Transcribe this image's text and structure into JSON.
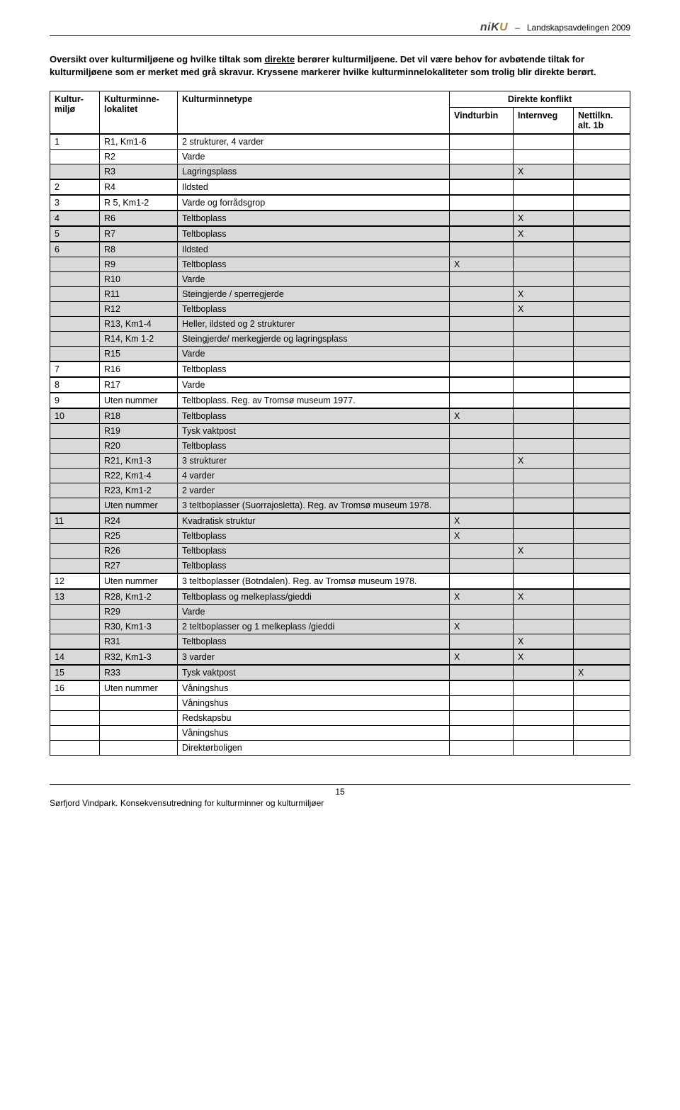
{
  "header": {
    "dept": "Landskapsavdelingen 2009",
    "logo": {
      "n": "n",
      "i": "i",
      "k": "K",
      "u": "U"
    }
  },
  "intro": {
    "p1a": "Oversikt over kulturmiljøene og hvilke tiltak som ",
    "p1u": "direkte",
    "p1b": " berører kulturmiljøene. Det vil være behov for avbøtende tiltak for kulturmiljøene som er merket med grå skravur. Kryssene markerer hvilke kulturminnelokaliteter som trolig blir direkte berørt."
  },
  "table": {
    "headers": {
      "c1": "Kultur-miljø",
      "c2": "Kulturminne-lokalitet",
      "c3": "Kulturminnetype",
      "c_conf": "Direkte konflikt",
      "c4": "Vindturbin",
      "c5": "Internveg",
      "c6": "Nettilkn. alt. 1b"
    },
    "rows": [
      {
        "km": "1",
        "lok": "R1, Km1-6",
        "type": "2 strukturer, 4 varder",
        "v": "",
        "i": "",
        "n": "",
        "shade": false,
        "group": true
      },
      {
        "km": "",
        "lok": "R2",
        "type": "Varde",
        "v": "",
        "i": "",
        "n": "",
        "shade": false
      },
      {
        "km": "",
        "lok": "R3",
        "type": "Lagringsplass",
        "v": "",
        "i": "X",
        "n": "",
        "shade": true
      },
      {
        "km": "2",
        "lok": "R4",
        "type": "Ildsted",
        "v": "",
        "i": "",
        "n": "",
        "shade": false,
        "group": true
      },
      {
        "km": "3",
        "lok": "R 5, Km1-2",
        "type": "Varde og forrådsgrop",
        "v": "",
        "i": "",
        "n": "",
        "shade": false,
        "group": true
      },
      {
        "km": "4",
        "lok": "R6",
        "type": "Teltboplass",
        "v": "",
        "i": "X",
        "n": "",
        "shade": true,
        "group": true
      },
      {
        "km": "5",
        "lok": "R7",
        "type": "Teltboplass",
        "v": "",
        "i": "X",
        "n": "",
        "shade": true,
        "group": true
      },
      {
        "km": "6",
        "lok": "R8",
        "type": "Ildsted",
        "v": "",
        "i": "",
        "n": "",
        "shade": true,
        "group": true
      },
      {
        "km": "",
        "lok": "R9",
        "type": "Teltboplass",
        "v": "X",
        "i": "",
        "n": "",
        "shade": true
      },
      {
        "km": "",
        "lok": "R10",
        "type": "Varde",
        "v": "",
        "i": "",
        "n": "",
        "shade": true
      },
      {
        "km": "",
        "lok": "R11",
        "type": "Steingjerde / sperregjerde",
        "v": "",
        "i": "X",
        "n": "",
        "shade": true
      },
      {
        "km": "",
        "lok": "R12",
        "type": "Teltboplass",
        "v": "",
        "i": "X",
        "n": "",
        "shade": true
      },
      {
        "km": "",
        "lok": "R13, Km1-4",
        "type": "Heller, ildsted og 2 strukturer",
        "v": "",
        "i": "",
        "n": "",
        "shade": true
      },
      {
        "km": "",
        "lok": "R14, Km 1-2",
        "type": "Steingjerde/ merkegjerde og lagringsplass",
        "v": "",
        "i": "",
        "n": "",
        "shade": true
      },
      {
        "km": "",
        "lok": "R15",
        "type": "Varde",
        "v": "",
        "i": "",
        "n": "",
        "shade": true
      },
      {
        "km": "7",
        "lok": "R16",
        "type": "Teltboplass",
        "v": "",
        "i": "",
        "n": "",
        "shade": false,
        "group": true
      },
      {
        "km": "8",
        "lok": "R17",
        "type": "Varde",
        "v": "",
        "i": "",
        "n": "",
        "shade": false,
        "group": true
      },
      {
        "km": "9",
        "lok": "Uten nummer",
        "type": "Teltboplass. Reg. av Tromsø museum 1977.",
        "v": "",
        "i": "",
        "n": "",
        "shade": false,
        "group": true
      },
      {
        "km": "10",
        "lok": "R18",
        "type": "Teltboplass",
        "v": "X",
        "i": "",
        "n": "",
        "shade": true,
        "group": true
      },
      {
        "km": "",
        "lok": "R19",
        "type": "Tysk vaktpost",
        "v": "",
        "i": "",
        "n": "",
        "shade": true
      },
      {
        "km": "",
        "lok": "R20",
        "type": "Teltboplass",
        "v": "",
        "i": "",
        "n": "",
        "shade": true
      },
      {
        "km": "",
        "lok": "R21, Km1-3",
        "type": "3 strukturer",
        "v": "",
        "i": "X",
        "n": "",
        "shade": true
      },
      {
        "km": "",
        "lok": "R22, Km1-4",
        "type": "4 varder",
        "v": "",
        "i": "",
        "n": "",
        "shade": true
      },
      {
        "km": "",
        "lok": "R23, Km1-2",
        "type": "2 varder",
        "v": "",
        "i": "",
        "n": "",
        "shade": true
      },
      {
        "km": "",
        "lok": "Uten nummer",
        "type": "3 teltboplasser (Suorrajosletta). Reg. av Tromsø museum 1978.",
        "v": "",
        "i": "",
        "n": "",
        "shade": true
      },
      {
        "km": "11",
        "lok": "R24",
        "type": "Kvadratisk struktur",
        "v": "X",
        "i": "",
        "n": "",
        "shade": true,
        "group": true
      },
      {
        "km": "",
        "lok": "R25",
        "type": "Teltboplass",
        "v": "X",
        "i": "",
        "n": "",
        "shade": true
      },
      {
        "km": "",
        "lok": "R26",
        "type": "Teltboplass",
        "v": "",
        "i": "X",
        "n": "",
        "shade": true
      },
      {
        "km": "",
        "lok": "R27",
        "type": "Teltboplass",
        "v": "",
        "i": "",
        "n": "",
        "shade": true
      },
      {
        "km": "12",
        "lok": "Uten nummer",
        "type": "3 teltboplasser (Botndalen). Reg. av Tromsø museum 1978.",
        "v": "",
        "i": "",
        "n": "",
        "shade": false,
        "group": true
      },
      {
        "km": "13",
        "lok": "R28, Km1-2",
        "type": "Teltboplass og melkeplass/gieddi",
        "v": "X",
        "i": "X",
        "n": "",
        "shade": true,
        "group": true
      },
      {
        "km": "",
        "lok": "R29",
        "type": "Varde",
        "v": "",
        "i": "",
        "n": "",
        "shade": true
      },
      {
        "km": "",
        "lok": "R30, Km1-3",
        "type": "2 teltboplasser og 1 melkeplass /gieddi",
        "v": "X",
        "i": "",
        "n": "",
        "shade": true
      },
      {
        "km": "",
        "lok": "R31",
        "type": "Teltboplass",
        "v": "",
        "i": "X",
        "n": "",
        "shade": true
      },
      {
        "km": "14",
        "lok": "R32, Km1-3",
        "type": "3 varder",
        "v": "X",
        "i": "X",
        "n": "",
        "shade": true,
        "group": true
      },
      {
        "km": "15",
        "lok": "R33",
        "type": "Tysk vaktpost",
        "v": "",
        "i": "",
        "n": "X",
        "shade": true,
        "group": true
      },
      {
        "km": "16",
        "lok": "Uten nummer",
        "type": "Våningshus",
        "v": "",
        "i": "",
        "n": "",
        "shade": false,
        "group": true
      },
      {
        "km": "",
        "lok": "",
        "type": "Våningshus",
        "v": "",
        "i": "",
        "n": "",
        "shade": false
      },
      {
        "km": "",
        "lok": "",
        "type": "Redskapsbu",
        "v": "",
        "i": "",
        "n": "",
        "shade": false
      },
      {
        "km": "",
        "lok": "",
        "type": "Våningshus",
        "v": "",
        "i": "",
        "n": "",
        "shade": false
      },
      {
        "km": "",
        "lok": "",
        "type": "Direktørboligen",
        "v": "",
        "i": "",
        "n": "",
        "shade": false
      }
    ]
  },
  "footer": {
    "page": "15",
    "text": "Sørfjord Vindpark. Konsekvensutredning for kulturminner og kulturmiljøer"
  }
}
